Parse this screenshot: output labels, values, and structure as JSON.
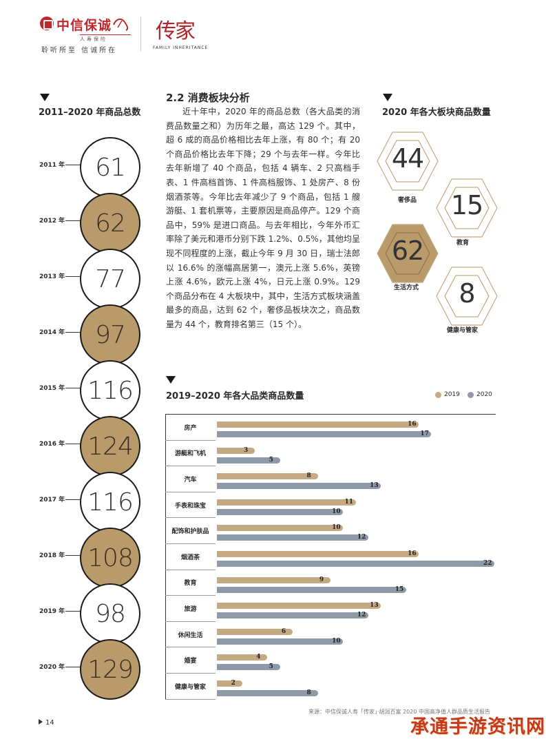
{
  "header": {
    "brand_name": "中信保诚",
    "brand_sub": "人寿保险",
    "slogan": "聆听所至  信诚所在",
    "heritage_mark": "传家",
    "heritage_sub": "FAMILY INHERITANCE"
  },
  "left_panel": {
    "title": "2011–2020 年商品总数",
    "rows": [
      {
        "year": "2011 年",
        "count": "61",
        "style": "white"
      },
      {
        "year": "2012 年",
        "count": "62",
        "style": "gold"
      },
      {
        "year": "2013 年",
        "count": "77",
        "style": "white"
      },
      {
        "year": "2014 年",
        "count": "97",
        "style": "gold"
      },
      {
        "year": "2015 年",
        "count": "116",
        "style": "white"
      },
      {
        "year": "2016 年",
        "count": "124",
        "style": "gold"
      },
      {
        "year": "2017 年",
        "count": "116",
        "style": "white"
      },
      {
        "year": "2018 年",
        "count": "108",
        "style": "gold"
      },
      {
        "year": "2019 年",
        "count": "98",
        "style": "white"
      },
      {
        "year": "2020 年",
        "count": "129",
        "style": "gold"
      }
    ]
  },
  "article": {
    "section_title": "2.2 消费板块分析",
    "body": "近十年中，2020 年的商品总数（各大品类的消费品数量之和）为历年之最，高达 129 个。其中，超 6 成的商品价格相比去年上涨，有 80 个；有 20 个商品价格比去年下降；29 个与去年一样。今年比去年新增了 40 个商品，包括 4 辆车、2 只高档手表、1 件高档首饰、1 件高档服饰、1 处房产、8 份烟酒茶等。今年比去年减少了 9 个商品，包括 1 艘游艇、1 套机票等，主要原因是商品停产。129 个商品中，59% 是进口商品。与去年相比，今年外币汇率除了美元和港币分别下跌 1.2%、0.5%，其他均呈现不同程度的上涨，截止今年 9 月 30 日，瑞士法郎以 16.6% 的涨幅高居第一，澳元上涨 5.6%，英镑上涨 4.6%，欧元上涨 4%，日元上涨 0.9%。129 个商品分布在 4 大板块中，其中，生活方式板块涵盖最多的商品，达到 62 个，奢侈品板块次之，商品数量为 44 个，教育排名第三（15 个）。"
  },
  "sectors": {
    "title": "2020 年各大板块商品数量",
    "items": [
      {
        "value": "44",
        "label": "奢侈品"
      },
      {
        "value": "15",
        "label": "教育"
      },
      {
        "value": "62",
        "label": "生活方式"
      },
      {
        "value": "8",
        "label": "健康与管家"
      }
    ]
  },
  "chart_data": {
    "type": "bar",
    "title": "2019–2020 年各大品类商品数量",
    "categories": [
      "房产",
      "游艇和飞机",
      "汽车",
      "手表和珠宝",
      "配饰和护肤品",
      "烟酒茶",
      "教育",
      "旅游",
      "休闲生活",
      "婚宴",
      "健康与管家"
    ],
    "series": [
      {
        "name": "2019",
        "color": "#c4a983",
        "values": [
          16,
          3,
          8,
          11,
          10,
          16,
          9,
          13,
          6,
          4,
          2
        ]
      },
      {
        "name": "2020",
        "color": "#8e9aa8",
        "values": [
          17,
          5,
          13,
          10,
          12,
          22,
          15,
          12,
          10,
          5,
          8
        ]
      }
    ],
    "xlim": [
      0,
      22
    ],
    "orientation": "horizontal",
    "legend": "top-right"
  },
  "footer": {
    "page_number": "14",
    "source": "来源：中信保诚人寿「传家」·胡润百富 2020 中国高净值人群品质生活报告",
    "watermark": "承通手游资讯网"
  }
}
